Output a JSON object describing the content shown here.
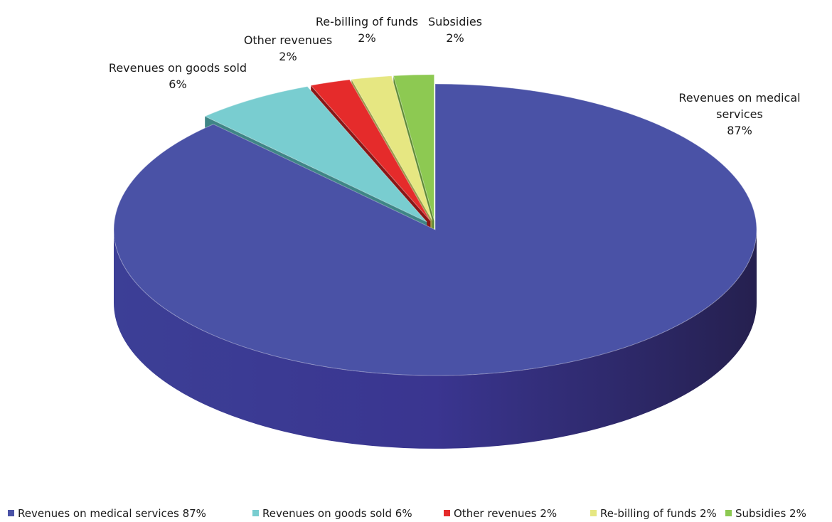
{
  "chart_data": {
    "type": "pie",
    "title": "",
    "categories": [
      "Revenues on medical services",
      "Revenues on goods sold",
      "Other revenues",
      "Re-billing of funds",
      "Subsidies"
    ],
    "values": [
      87,
      6,
      2,
      2,
      2
    ],
    "unit": "%",
    "legend_position": "bottom",
    "data_labels": [
      {
        "lines": [
          "Revenues on medical",
          "services"
        ],
        "pct": "87%"
      },
      {
        "lines": [
          "Revenues on goods sold"
        ],
        "pct": "6%"
      },
      {
        "lines": [
          "Other revenues"
        ],
        "pct": "2%"
      },
      {
        "lines": [
          "Re-billing of funds"
        ],
        "pct": "2%"
      },
      {
        "lines": [
          "Subsidies"
        ],
        "pct": "2%"
      }
    ],
    "legend": [
      "Revenues on medical services 87%",
      "Revenues on goods sold 6%",
      "Other revenues 2%",
      "Re-billing of funds 2%",
      "Subsidies 2%"
    ],
    "colors": [
      "#4a52a6",
      "#79cdd0",
      "#e52b2b",
      "#e6e782",
      "#8dc952"
    ],
    "side_colors": [
      "#2f2d7a",
      "#3f8586",
      "#8a1616",
      "#9a9a45",
      "#5d8a33"
    ]
  }
}
